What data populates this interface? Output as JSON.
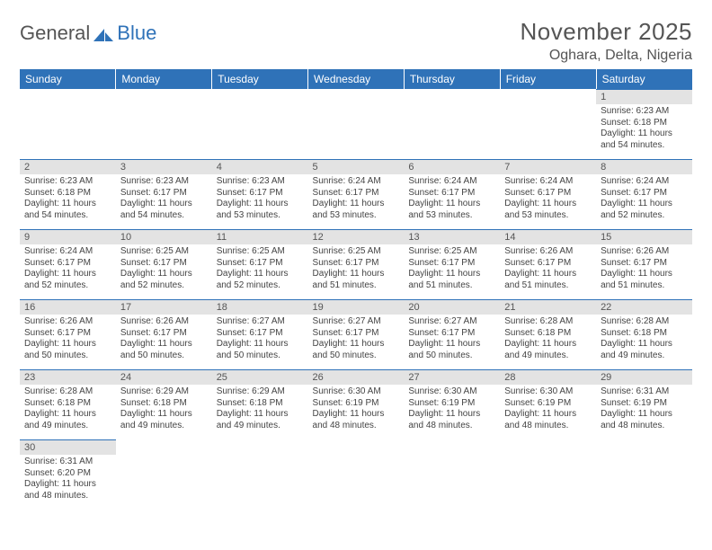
{
  "logo": {
    "text1": "General",
    "text2": "Blue"
  },
  "title": "November 2025",
  "location": "Oghara, Delta, Nigeria",
  "headers": [
    "Sunday",
    "Monday",
    "Tuesday",
    "Wednesday",
    "Thursday",
    "Friday",
    "Saturday"
  ],
  "colors": {
    "header_bg": "#2f72b8",
    "header_fg": "#ffffff",
    "daynum_bg": "#e3e3e3",
    "divider": "#2f72b8",
    "text": "#444444",
    "title_color": "#555555"
  },
  "first_day_index": 6,
  "days": [
    {
      "n": 1,
      "sr": "6:23 AM",
      "ss": "6:18 PM",
      "dl": "11 hours and 54 minutes."
    },
    {
      "n": 2,
      "sr": "6:23 AM",
      "ss": "6:18 PM",
      "dl": "11 hours and 54 minutes."
    },
    {
      "n": 3,
      "sr": "6:23 AM",
      "ss": "6:17 PM",
      "dl": "11 hours and 54 minutes."
    },
    {
      "n": 4,
      "sr": "6:23 AM",
      "ss": "6:17 PM",
      "dl": "11 hours and 53 minutes."
    },
    {
      "n": 5,
      "sr": "6:24 AM",
      "ss": "6:17 PM",
      "dl": "11 hours and 53 minutes."
    },
    {
      "n": 6,
      "sr": "6:24 AM",
      "ss": "6:17 PM",
      "dl": "11 hours and 53 minutes."
    },
    {
      "n": 7,
      "sr": "6:24 AM",
      "ss": "6:17 PM",
      "dl": "11 hours and 53 minutes."
    },
    {
      "n": 8,
      "sr": "6:24 AM",
      "ss": "6:17 PM",
      "dl": "11 hours and 52 minutes."
    },
    {
      "n": 9,
      "sr": "6:24 AM",
      "ss": "6:17 PM",
      "dl": "11 hours and 52 minutes."
    },
    {
      "n": 10,
      "sr": "6:25 AM",
      "ss": "6:17 PM",
      "dl": "11 hours and 52 minutes."
    },
    {
      "n": 11,
      "sr": "6:25 AM",
      "ss": "6:17 PM",
      "dl": "11 hours and 52 minutes."
    },
    {
      "n": 12,
      "sr": "6:25 AM",
      "ss": "6:17 PM",
      "dl": "11 hours and 51 minutes."
    },
    {
      "n": 13,
      "sr": "6:25 AM",
      "ss": "6:17 PM",
      "dl": "11 hours and 51 minutes."
    },
    {
      "n": 14,
      "sr": "6:26 AM",
      "ss": "6:17 PM",
      "dl": "11 hours and 51 minutes."
    },
    {
      "n": 15,
      "sr": "6:26 AM",
      "ss": "6:17 PM",
      "dl": "11 hours and 51 minutes."
    },
    {
      "n": 16,
      "sr": "6:26 AM",
      "ss": "6:17 PM",
      "dl": "11 hours and 50 minutes."
    },
    {
      "n": 17,
      "sr": "6:26 AM",
      "ss": "6:17 PM",
      "dl": "11 hours and 50 minutes."
    },
    {
      "n": 18,
      "sr": "6:27 AM",
      "ss": "6:17 PM",
      "dl": "11 hours and 50 minutes."
    },
    {
      "n": 19,
      "sr": "6:27 AM",
      "ss": "6:17 PM",
      "dl": "11 hours and 50 minutes."
    },
    {
      "n": 20,
      "sr": "6:27 AM",
      "ss": "6:17 PM",
      "dl": "11 hours and 50 minutes."
    },
    {
      "n": 21,
      "sr": "6:28 AM",
      "ss": "6:18 PM",
      "dl": "11 hours and 49 minutes."
    },
    {
      "n": 22,
      "sr": "6:28 AM",
      "ss": "6:18 PM",
      "dl": "11 hours and 49 minutes."
    },
    {
      "n": 23,
      "sr": "6:28 AM",
      "ss": "6:18 PM",
      "dl": "11 hours and 49 minutes."
    },
    {
      "n": 24,
      "sr": "6:29 AM",
      "ss": "6:18 PM",
      "dl": "11 hours and 49 minutes."
    },
    {
      "n": 25,
      "sr": "6:29 AM",
      "ss": "6:18 PM",
      "dl": "11 hours and 49 minutes."
    },
    {
      "n": 26,
      "sr": "6:30 AM",
      "ss": "6:19 PM",
      "dl": "11 hours and 48 minutes."
    },
    {
      "n": 27,
      "sr": "6:30 AM",
      "ss": "6:19 PM",
      "dl": "11 hours and 48 minutes."
    },
    {
      "n": 28,
      "sr": "6:30 AM",
      "ss": "6:19 PM",
      "dl": "11 hours and 48 minutes."
    },
    {
      "n": 29,
      "sr": "6:31 AM",
      "ss": "6:19 PM",
      "dl": "11 hours and 48 minutes."
    },
    {
      "n": 30,
      "sr": "6:31 AM",
      "ss": "6:20 PM",
      "dl": "11 hours and 48 minutes."
    }
  ],
  "labels": {
    "sunrise": "Sunrise:",
    "sunset": "Sunset:",
    "daylight": "Daylight:"
  }
}
